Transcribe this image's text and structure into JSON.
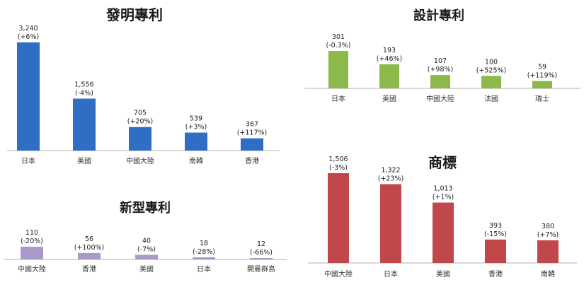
{
  "chart_data": [
    {
      "type": "bar",
      "title": "發明專利",
      "categories": [
        "日本",
        "美國",
        "中國大陸",
        "南韓",
        "香港"
      ],
      "values": [
        3240,
        1556,
        705,
        539,
        367
      ],
      "changes": [
        "(+6%)",
        "(-4%)",
        "(+20%)",
        "(+3%)",
        "(+117%)"
      ],
      "value_labels": [
        "3,240",
        "1,556",
        "705",
        "539",
        "367"
      ],
      "color": "#2f6ec4"
    },
    {
      "type": "bar",
      "title": "設計專利",
      "categories": [
        "日本",
        "美國",
        "中國大陸",
        "法國",
        "瑞士"
      ],
      "values": [
        301,
        193,
        107,
        100,
        59
      ],
      "changes": [
        "(-0.3%)",
        "(+46%)",
        "(+98%)",
        "(+525%)",
        "(+119%)"
      ],
      "value_labels": [
        "301",
        "193",
        "107",
        "100",
        "59"
      ],
      "color": "#8db84a"
    },
    {
      "type": "bar",
      "title": "新型專利",
      "categories": [
        "中國大陸",
        "香港",
        "美國",
        "日本",
        "開曼群島"
      ],
      "values": [
        110,
        56,
        40,
        18,
        12
      ],
      "changes": [
        "(-20%)",
        "(+100%)",
        "(-7%)",
        "(-28%)",
        "(-66%)"
      ],
      "value_labels": [
        "110",
        "56",
        "40",
        "18",
        "12"
      ],
      "color": "#a899c9"
    },
    {
      "type": "bar",
      "title": "商標",
      "categories": [
        "中國大陸",
        "日本",
        "美國",
        "香港",
        "南韓"
      ],
      "values": [
        1506,
        1322,
        1013,
        393,
        380
      ],
      "changes": [
        "(-3%)",
        "(+23%)",
        "(+1%)",
        "(-15%)",
        "(+7%)"
      ],
      "value_labels": [
        "1,506",
        "1,322",
        "1,013",
        "393",
        "380"
      ],
      "color": "#c0484a"
    }
  ]
}
